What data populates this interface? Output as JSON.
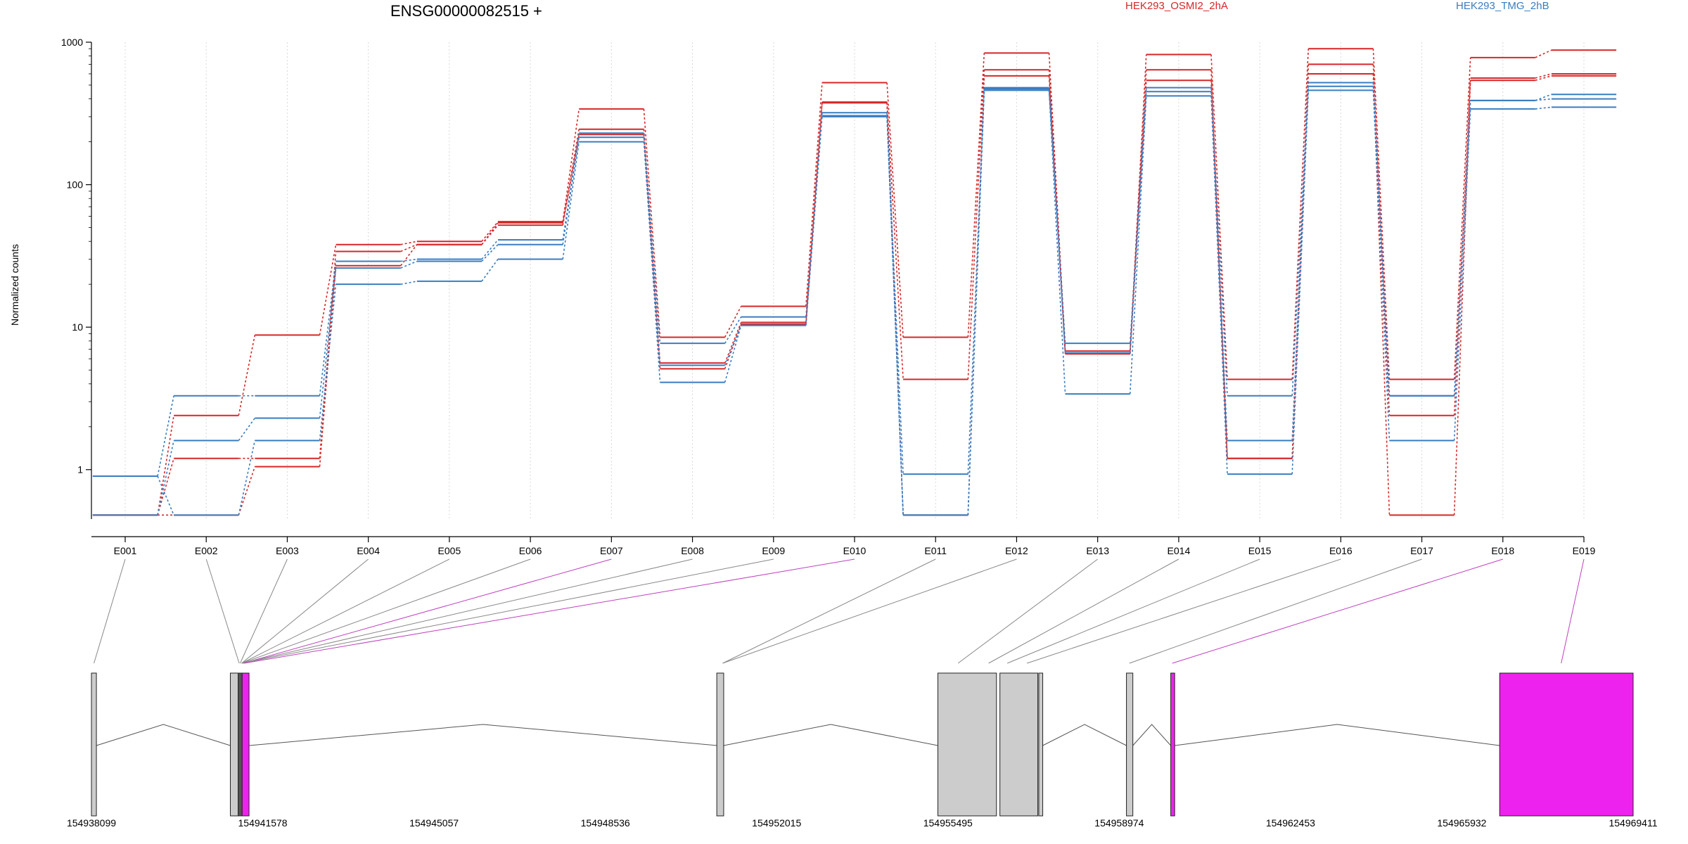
{
  "chart_data": {
    "type": "line",
    "title": "ENSG00000082515 +",
    "ylabel": "Normalized counts",
    "yscale": "log",
    "ylim": [
      0.45,
      1000
    ],
    "yticks": [
      1,
      10,
      100,
      1000
    ],
    "ytick_labels": [
      "1",
      "10",
      "100",
      "1000"
    ],
    "grid": "vertical dotted",
    "legend_placement": "top-right",
    "legend": [
      {
        "name": "HEK293_OSMI2_2hA",
        "color": "#d62728"
      },
      {
        "name": "HEK293_TMG_2hB",
        "color": "#3a7dc0"
      }
    ],
    "categories": [
      "E001",
      "E002",
      "E003",
      "E004",
      "E005",
      "E006",
      "E007",
      "E008",
      "E009",
      "E010",
      "E011",
      "E012",
      "E013",
      "E014",
      "E015",
      "E016",
      "E017",
      "E018",
      "E019"
    ],
    "series": [
      {
        "group": "HEK293_OSMI2_2hA",
        "color": "#d62728",
        "values": [
          0.48,
          2.4,
          8.8,
          38,
          40,
          55,
          340,
          8.5,
          14,
          520,
          8.5,
          840,
          6.8,
          820,
          4.3,
          900,
          4.3,
          780,
          880
        ]
      },
      {
        "group": "HEK293_OSMI2_2hA",
        "color": "#d62728",
        "values": [
          0.48,
          1.2,
          1.2,
          34,
          38,
          54,
          245,
          5.6,
          10.8,
          380,
          4.3,
          640,
          6.5,
          640,
          1.2,
          700,
          2.4,
          560,
          600
        ]
      },
      {
        "group": "HEK293_OSMI2_2hA",
        "color": "#d62728",
        "values": [
          0.48,
          0.48,
          1.05,
          27,
          38,
          52,
          225,
          5.1,
          10.5,
          375,
          0.48,
          580,
          6.5,
          540,
          1.2,
          600,
          0.48,
          540,
          580
        ]
      },
      {
        "group": "HEK293_TMG_2hB",
        "color": "#3a7dc0",
        "values": [
          0.9,
          3.3,
          3.3,
          29,
          30,
          41,
          230,
          7.7,
          11.8,
          320,
          0.93,
          480,
          7.7,
          480,
          3.3,
          520,
          3.3,
          390,
          430
        ]
      },
      {
        "group": "HEK293_TMG_2hB",
        "color": "#3a7dc0",
        "values": [
          0.48,
          1.6,
          2.3,
          26,
          29,
          38,
          215,
          5.4,
          10.3,
          305,
          0.48,
          470,
          6.6,
          450,
          1.6,
          490,
          3.3,
          390,
          400
        ]
      },
      {
        "group": "HEK293_TMG_2hB",
        "color": "#3a7dc0",
        "values": [
          0.9,
          0.48,
          1.6,
          20,
          21,
          30,
          200,
          4.1,
          10.3,
          300,
          0.48,
          460,
          3.4,
          420,
          0.93,
          460,
          1.6,
          340,
          350
        ]
      }
    ],
    "exon_links": [
      {
        "exon": "E001",
        "target": 0,
        "color": "#888888"
      },
      {
        "exon": "E002",
        "target": 1,
        "color": "#888888"
      },
      {
        "exon": "E003",
        "target": 2,
        "color": "#888888"
      },
      {
        "exon": "E004",
        "target": 3,
        "color": "#888888"
      },
      {
        "exon": "E005",
        "target": 3,
        "color": "#888888"
      },
      {
        "exon": "E006",
        "target": 3,
        "color": "#888888"
      },
      {
        "exon": "E007",
        "target": 4,
        "color": "#c040c0"
      },
      {
        "exon": "E008",
        "target": 3,
        "color": "#888888"
      },
      {
        "exon": "E009",
        "target": 3,
        "color": "#888888"
      },
      {
        "exon": "E010",
        "target": 5,
        "color": "#c040c0"
      },
      {
        "exon": "E011",
        "target": 6,
        "color": "#888888"
      },
      {
        "exon": "E012",
        "target": 6,
        "color": "#888888"
      },
      {
        "exon": "E013",
        "target": 7,
        "color": "#888888"
      },
      {
        "exon": "E014",
        "target": 8,
        "color": "#888888"
      },
      {
        "exon": "E015",
        "target": 9,
        "color": "#888888"
      },
      {
        "exon": "E016",
        "target": 10,
        "color": "#888888"
      },
      {
        "exon": "E017",
        "target": 11,
        "color": "#888888"
      },
      {
        "exon": "E018",
        "target": 12,
        "color": "#c040c0"
      },
      {
        "exon": "E019",
        "target": 13,
        "color": "#c040c0"
      }
    ],
    "gene_model": {
      "genomic_range": [
        154938099,
        154969411
      ],
      "coordinate_labels": [
        "154938099",
        "154941578",
        "154945057",
        "154948536",
        "154952015",
        "154955495",
        "154958974",
        "154962453",
        "154965932",
        "154969411"
      ],
      "exon_boxes": [
        {
          "start": 154938099,
          "end": 154938200,
          "color": "#cccccc"
        },
        {
          "start": 154940920,
          "end": 154941080,
          "color": "#cccccc"
        },
        {
          "start": 154941080,
          "end": 154941160,
          "color": "#555555"
        },
        {
          "start": 154941160,
          "end": 154941300,
          "color": "#ee22ee"
        },
        {
          "start": 154950800,
          "end": 154950940,
          "color": "#cccccc"
        },
        {
          "start": 154955290,
          "end": 154956480,
          "color": "#cccccc"
        },
        {
          "start": 154956550,
          "end": 154957320,
          "color": "#cccccc"
        },
        {
          "start": 154957340,
          "end": 154957420,
          "color": "#cccccc"
        },
        {
          "start": 154959120,
          "end": 154959250,
          "color": "#cccccc"
        },
        {
          "start": 154960020,
          "end": 154960100,
          "color": "#ee22ee"
        },
        {
          "start": 154966700,
          "end": 154969411,
          "color": "#ee22ee"
        }
      ],
      "link_targets": [
        154938150,
        154941100,
        154941120,
        154941150,
        154941180,
        154941200,
        154950920,
        154955700,
        154956320,
        154956700,
        154957100,
        154959180,
        154960050,
        154967950
      ]
    }
  }
}
